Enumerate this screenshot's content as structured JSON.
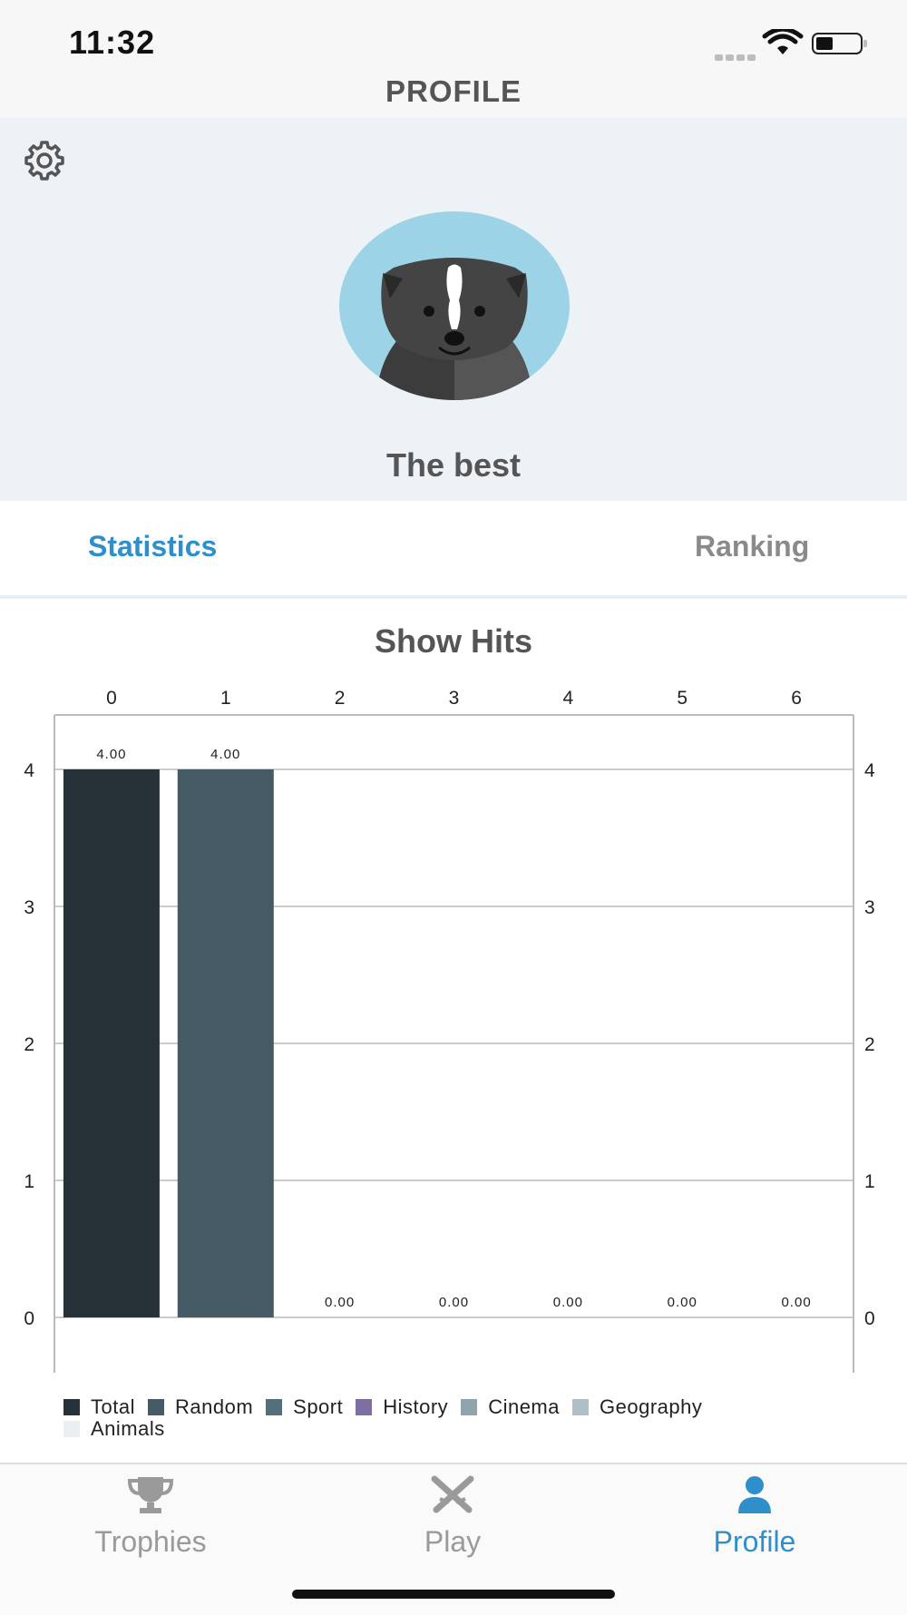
{
  "status": {
    "time": "11:32"
  },
  "header": {
    "title": "PROFILE",
    "username": "The best"
  },
  "tabs": [
    {
      "label": "Statistics",
      "active": true
    },
    {
      "label": "Ranking",
      "active": false
    }
  ],
  "chart": {
    "title": "Show Hits"
  },
  "chart_data": {
    "type": "bar",
    "title": "Show Hits",
    "categories": [
      "0",
      "1",
      "2",
      "3",
      "4",
      "5",
      "6"
    ],
    "values": [
      4,
      4,
      0,
      0,
      0,
      0,
      0
    ],
    "data_labels": [
      "4.00",
      "4.00",
      "0.00",
      "0.00",
      "0.00",
      "0.00",
      "0.00"
    ],
    "bar_series_index": [
      0,
      1,
      2,
      3,
      4,
      5,
      6
    ],
    "ylim": [
      0,
      4
    ],
    "yticks": [
      "0",
      "1",
      "2",
      "3",
      "4"
    ],
    "ylabel": "",
    "xlabel": "",
    "x_axis_position": "top",
    "y_axis_both_sides": true,
    "grid": true,
    "legend_position": "bottom-left",
    "legend": [
      {
        "name": "Total",
        "color": "#263238"
      },
      {
        "name": "Random",
        "color": "#455a64"
      },
      {
        "name": "Sport",
        "color": "#546e7a"
      },
      {
        "name": "History",
        "color": "#7e6fa3"
      },
      {
        "name": "Cinema",
        "color": "#90a4ae"
      },
      {
        "name": "Geography",
        "color": "#b0bec5"
      },
      {
        "name": "Animals",
        "color": "#eceff1"
      }
    ]
  },
  "tabbar": [
    {
      "label": "Trophies",
      "icon": "trophy-icon",
      "active": false
    },
    {
      "label": "Play",
      "icon": "crossed-swords-icon",
      "active": false
    },
    {
      "label": "Profile",
      "icon": "person-icon",
      "active": true
    }
  ],
  "colors": {
    "accent": "#2f8fcb",
    "header_bg": "#edf2f6",
    "avatar_bg": "#9dd3e6"
  }
}
